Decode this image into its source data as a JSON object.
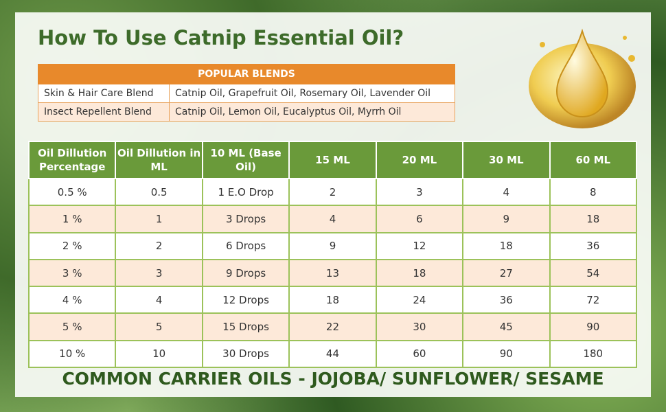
{
  "title": "How To Use Catnip Essential Oil?",
  "blends": {
    "header": "POPULAR BLENDS",
    "rows": [
      [
        "Skin & Hair Care Blend",
        "Catnip Oil, Grapefruit Oil, Rosemary Oil, Lavender Oil"
      ],
      [
        "Insect Repellent Blend",
        "Catnip Oil, Lemon Oil, Eucalyptus Oil, Myrrh Oil"
      ]
    ]
  },
  "table": {
    "header": [
      "Oil Dillution Percentage",
      "Oil Dillution in ML",
      "10 ML (Base Oil)",
      "15 ML",
      "20 ML",
      "30 ML",
      "60 ML"
    ],
    "rows": [
      [
        "0.5 %",
        "0.5",
        "1 E.O Drop",
        "2",
        "3",
        "4",
        "8"
      ],
      [
        "1 %",
        "1",
        "3 Drops",
        "4",
        "6",
        "9",
        "18"
      ],
      [
        "2 %",
        "2",
        "6 Drops",
        "9",
        "12",
        "18",
        "36"
      ],
      [
        "3 %",
        "3",
        "9 Drops",
        "13",
        "18",
        "27",
        "54"
      ],
      [
        "4 %",
        "4",
        "12 Drops",
        "18",
        "24",
        "36",
        "72"
      ],
      [
        "5 %",
        "5",
        "15 Drops",
        "22",
        "30",
        "45",
        "90"
      ],
      [
        "10 %",
        "10",
        "30 Drops",
        "44",
        "60",
        "90",
        "180"
      ]
    ]
  },
  "footer": "COMMON CARRIER OILS - JOJOBA/ SUNFLOWER/ SESAME"
}
